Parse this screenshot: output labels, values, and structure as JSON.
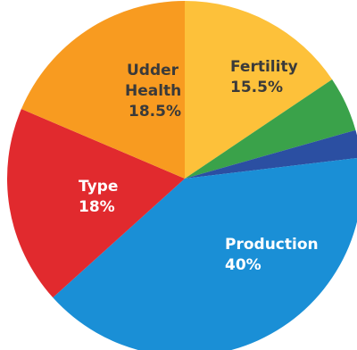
{
  "chart_data": {
    "type": "pie",
    "slices": [
      {
        "label": "Fertility",
        "value_text": "15.5%",
        "value": 15.5,
        "color": "#FDC13A"
      },
      {
        "label": "",
        "value_text": "",
        "value": 5.0,
        "color": "#3AA24A"
      },
      {
        "label": "",
        "value_text": "",
        "value": 2.5,
        "color": "#2B4FA2"
      },
      {
        "label": "Production",
        "value_text": "40%",
        "value": 40,
        "color": "#1A8FD6"
      },
      {
        "label": "Type",
        "value_text": "18%",
        "value": 18,
        "color": "#E12A2E"
      },
      {
        "label": "Udder Health",
        "value_text": "18.5%",
        "value": 18.5,
        "color": "#F89B20"
      }
    ]
  }
}
